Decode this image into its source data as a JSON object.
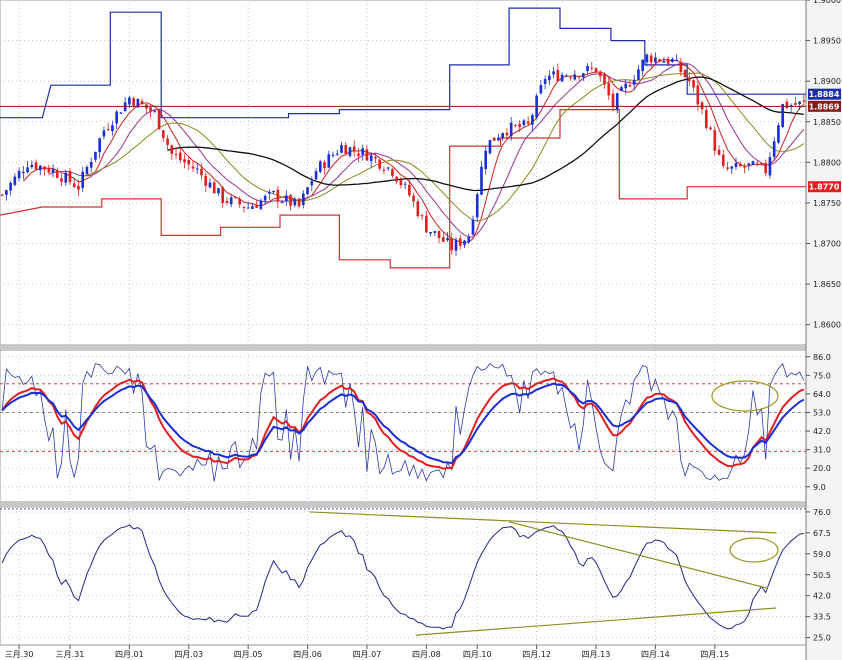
{
  "colors": {
    "up": "#1a2fd0",
    "down": "#e02020",
    "ma_short": "#cc2222",
    "ma_mid": "#993399",
    "ma_long": "#8a8a20",
    "ma_base": "#111111",
    "rsi_fast": "#1a2fd0",
    "rsi_slow": "#e02020",
    "box_high": "#1a2fa8",
    "box_low": "#d03030",
    "trend": "#8f8f20",
    "grid": "#b8b8b8",
    "ref_line": "#e02020"
  },
  "chart_data": [
    {
      "type": "candlestick",
      "name": "price",
      "ylim": [
        1.8575,
        1.9
      ],
      "y_ticks": [
        "1.9000",
        "1.8950",
        "1.8900",
        "1.8850",
        "1.8800",
        "1.8750",
        "1.8700",
        "1.8650",
        "1.8600"
      ],
      "y_tick_values": [
        1.9,
        1.895,
        1.89,
        1.885,
        1.88,
        1.875,
        1.87,
        1.865,
        1.86
      ],
      "x_ticks": [
        "三月.30",
        "三月.31",
        "四月.01",
        "四月.03",
        "四月.05",
        "四月.06",
        "四月.07",
        "四月.08",
        "四月.10",
        "四月.12",
        "四月.13",
        "四月.14",
        "四月.15"
      ],
      "x_tick_index": [
        4,
        16,
        30,
        44,
        58,
        72,
        86,
        100,
        112,
        126,
        140,
        154,
        168
      ],
      "horizontal_levels": [
        {
          "value": 1.8869,
          "label": "1.8869",
          "color": "#8b1a1a",
          "tag": "#8b1a1a"
        },
        {
          "value": 1.8884,
          "label": "1.8884",
          "color": "#1a2fa8",
          "tag": "#1a2fa8"
        },
        {
          "value": 1.877,
          "label": "1.8770",
          "color": "#e02020",
          "tag": "#e02020"
        }
      ],
      "box_high": [
        [
          0,
          1.8855
        ],
        [
          10,
          1.8855
        ],
        [
          12,
          1.8895
        ],
        [
          26,
          1.8895
        ],
        [
          26,
          1.8985
        ],
        [
          38,
          1.8985
        ],
        [
          38,
          1.8855
        ],
        [
          68,
          1.8855
        ],
        [
          68,
          1.886
        ],
        [
          80,
          1.886
        ],
        [
          80,
          1.8865
        ],
        [
          106,
          1.8865
        ],
        [
          106,
          1.892
        ],
        [
          120,
          1.892
        ],
        [
          120,
          1.899
        ],
        [
          132,
          1.899
        ],
        [
          132,
          1.8965
        ],
        [
          144,
          1.8965
        ],
        [
          144,
          1.895
        ],
        [
          152,
          1.895
        ],
        [
          152,
          1.892
        ],
        [
          162,
          1.892
        ],
        [
          162,
          1.8884
        ],
        [
          190,
          1.8884
        ]
      ],
      "box_low": [
        [
          0,
          1.8735
        ],
        [
          10,
          1.8745
        ],
        [
          24,
          1.8745
        ],
        [
          24,
          1.8755
        ],
        [
          38,
          1.8755
        ],
        [
          38,
          1.871
        ],
        [
          52,
          1.871
        ],
        [
          52,
          1.872
        ],
        [
          66,
          1.872
        ],
        [
          66,
          1.8735
        ],
        [
          80,
          1.8735
        ],
        [
          80,
          1.868
        ],
        [
          92,
          1.868
        ],
        [
          92,
          1.867
        ],
        [
          106,
          1.867
        ],
        [
          106,
          1.882
        ],
        [
          118,
          1.882
        ],
        [
          118,
          1.883
        ],
        [
          132,
          1.883
        ],
        [
          132,
          1.8865
        ],
        [
          146,
          1.8865
        ],
        [
          146,
          1.8755
        ],
        [
          162,
          1.8755
        ],
        [
          162,
          1.877
        ],
        [
          190,
          1.877
        ]
      ]
    },
    {
      "type": "line",
      "name": "oscillator-1",
      "ylim": [
        0,
        90
      ],
      "y_ticks": [
        "86.0",
        "75.0",
        "64.0",
        "53.0",
        "42.0",
        "31.0",
        "20.0",
        "9.0"
      ],
      "y_tick_values": [
        86,
        75,
        64,
        53,
        42,
        31,
        20,
        9
      ],
      "ref_levels": [
        70,
        53,
        30
      ]
    },
    {
      "type": "line",
      "name": "oscillator-2",
      "ylim": [
        22,
        78
      ],
      "y_ticks": [
        "76.0",
        "67.5",
        "59.0",
        "50.5",
        "42.0",
        "33.5",
        "25.0"
      ],
      "y_tick_values": [
        76,
        67.5,
        59,
        50.5,
        42,
        33.5,
        25
      ],
      "trendlines": [
        {
          "from": [
            73,
            76
          ],
          "to": [
            183,
            67.5
          ]
        },
        {
          "from": [
            120,
            72
          ],
          "to": [
            181,
            45
          ]
        },
        {
          "from": [
            98,
            26
          ],
          "to": [
            183,
            37
          ]
        }
      ]
    }
  ]
}
